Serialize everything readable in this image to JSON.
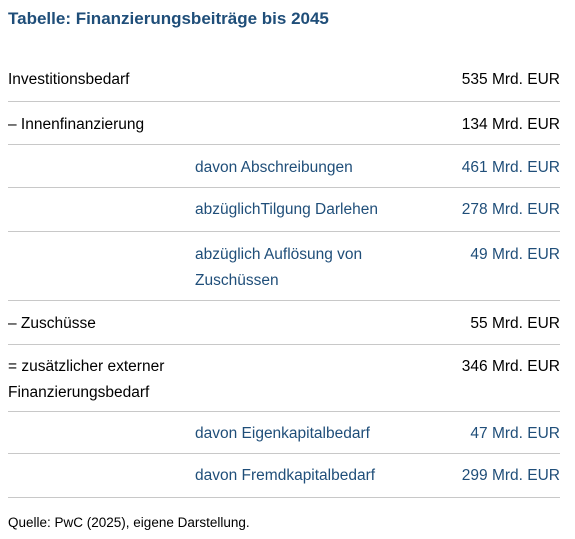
{
  "title": "Tabelle: Finanzierungsbeiträge bis 2045",
  "rows": [
    {
      "label": "Investitionsbedarf",
      "value": "535 Mrd. EUR"
    },
    {
      "label": "– Innenfinanzierung",
      "value": "134 Mrd. EUR"
    },
    {
      "label": "davon Abschreibungen",
      "value": "461 Mrd. EUR"
    },
    {
      "label": "abzüglichTilgung Darlehen",
      "value": "278 Mrd. EUR"
    },
    {
      "label": "abzüglich Auflösung von Zuschüssen",
      "value": "49 Mrd. EUR"
    },
    {
      "label": "– Zuschüsse",
      "value": "55 Mrd. EUR"
    },
    {
      "label": "= zusätzlicher externer Finanzierungsbedarf",
      "value": "346 Mrd. EUR"
    },
    {
      "label": "davon Eigenkapitalbedarf",
      "value": "47 Mrd. EUR"
    },
    {
      "label": "davon Fremdkapitalbedarf",
      "value": "299 Mrd. EUR"
    }
  ],
  "source": "Quelle: PwC (2025), eigene Darstellung.",
  "colors": {
    "accent": "#1f4e79",
    "divider": "#c8c8c8"
  }
}
